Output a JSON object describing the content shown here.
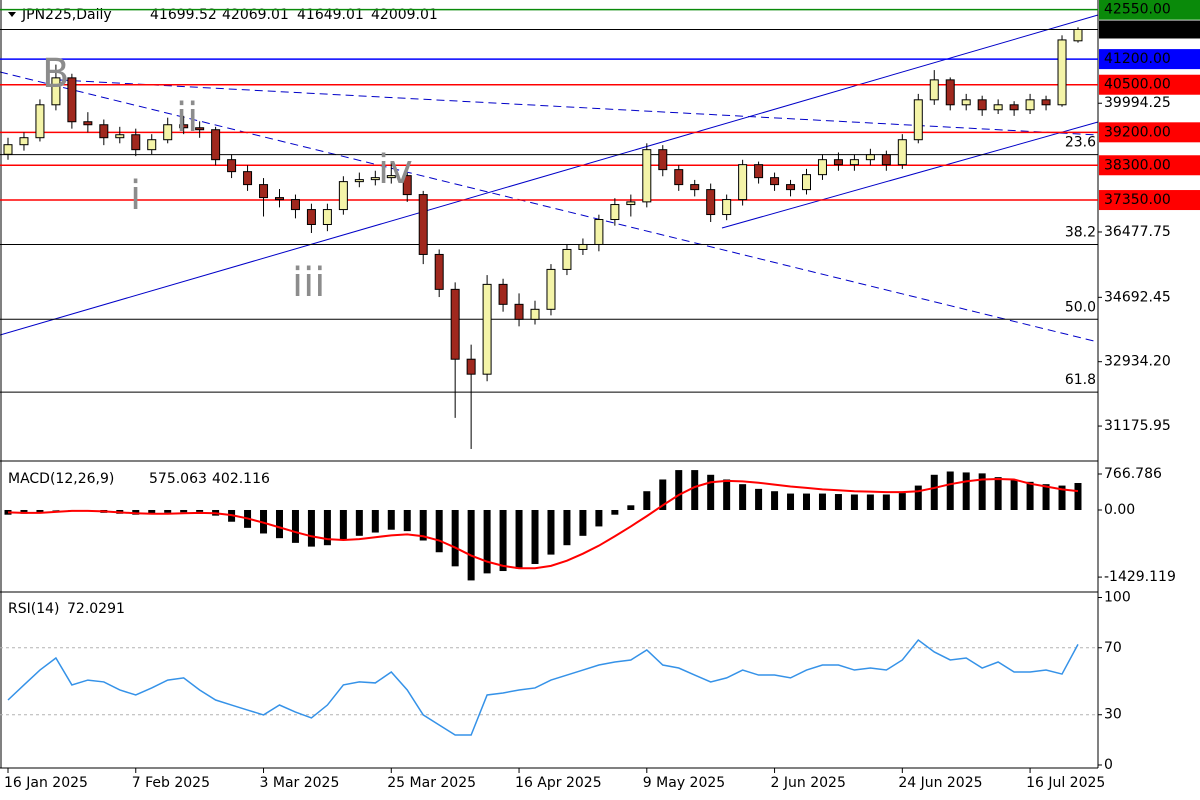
{
  "chart_data": [
    {
      "type": "candlestick",
      "title": "JPN225,Daily",
      "categories": [
        "16 Jan 2025",
        null,
        null,
        null,
        null,
        null,
        null,
        null,
        "7 Feb 2025",
        null,
        null,
        null,
        null,
        null,
        null,
        null,
        "3 Mar 2025",
        null,
        null,
        null,
        null,
        null,
        null,
        null,
        "25 Mar 2025",
        null,
        null,
        null,
        null,
        null,
        null,
        null,
        "16 Apr 2025",
        null,
        null,
        null,
        null,
        null,
        null,
        null,
        "9 May 2025",
        null,
        null,
        null,
        null,
        null,
        null,
        null,
        "2 Jun 2025",
        null,
        null,
        null,
        null,
        null,
        null,
        null,
        "24 Jun 2025",
        null,
        null,
        null,
        null,
        null,
        null,
        null,
        "16 Jul 2025",
        null,
        null,
        null
      ],
      "open": [
        38600,
        38862,
        39053,
        39952,
        40688,
        39489,
        39407,
        39053,
        39134,
        38726,
        38998,
        39407,
        39325,
        39271,
        38453,
        38126,
        37772,
        37417,
        37363,
        37090,
        36682,
        37090,
        37853,
        37908,
        37962,
        38017,
        37499,
        35864,
        34910,
        33002,
        32593,
        35046,
        34501,
        34092,
        34365,
        35455,
        36000,
        36136,
        36818,
        37227,
        37300,
        38726,
        38181,
        37772,
        37635,
        36954,
        37363,
        38317,
        37962,
        37772,
        37635,
        38044,
        38453,
        38317,
        38453,
        38589,
        38317,
        38998,
        40088,
        40633,
        39952,
        40088,
        39816,
        39952,
        39816,
        40088,
        39952,
        41699.52
      ],
      "high": [
        39050,
        39200,
        40100,
        41050,
        40800,
        39750,
        39550,
        39350,
        39300,
        39150,
        39600,
        39650,
        39500,
        39350,
        38600,
        38300,
        37950,
        37650,
        37500,
        37250,
        37250,
        38000,
        38100,
        38150,
        38400,
        38100,
        37600,
        36000,
        35100,
        33400,
        35300,
        35200,
        34800,
        34600,
        35600,
        36150,
        36300,
        36950,
        37400,
        37500,
        38900,
        38850,
        38300,
        37900,
        37800,
        37500,
        38450,
        38400,
        38100,
        37900,
        38200,
        38600,
        38650,
        38600,
        38750,
        38700,
        39150,
        40250,
        40900,
        40700,
        40250,
        40200,
        40100,
        40050,
        40250,
        40200,
        41850,
        42069.01
      ],
      "low": [
        38450,
        38700,
        38950,
        39800,
        39300,
        39200,
        38850,
        38900,
        38550,
        38600,
        38900,
        39150,
        39050,
        38300,
        37950,
        37600,
        36900,
        37150,
        36850,
        36450,
        36500,
        36950,
        37700,
        37750,
        37800,
        37300,
        35600,
        34700,
        31400,
        30550,
        32400,
        34300,
        33900,
        33950,
        34200,
        35300,
        35850,
        35950,
        36650,
        36900,
        37150,
        38000,
        37600,
        37450,
        36750,
        36800,
        37200,
        37800,
        37600,
        37450,
        37500,
        37900,
        38150,
        38150,
        38300,
        38150,
        38200,
        38900,
        39950,
        39800,
        39800,
        39650,
        39700,
        39650,
        39700,
        39800,
        39900,
        41649.01
      ],
      "close": [
        38862,
        39053,
        39952,
        40688,
        39489,
        39407,
        39053,
        39134,
        38726,
        38998,
        39407,
        39325,
        39271,
        38453,
        38126,
        37772,
        37417,
        37363,
        37090,
        36682,
        37090,
        37853,
        37908,
        37962,
        38017,
        37499,
        35864,
        34910,
        33002,
        32593,
        35046,
        34501,
        34092,
        34365,
        35455,
        36000,
        36136,
        36818,
        37227,
        37300,
        38726,
        38181,
        37772,
        37635,
        36954,
        37363,
        38317,
        37962,
        37772,
        37635,
        38044,
        38453,
        38317,
        38453,
        38589,
        38317,
        38998,
        40088,
        40633,
        39952,
        40088,
        39816,
        39952,
        39816,
        40088,
        39952,
        41724,
        42009.01
      ],
      "up_color": "#f4f4a8",
      "down_color": "#a0281e",
      "ylim": [
        30276,
        42678
      ],
      "yticks": [
        39994.25,
        36477.75,
        34692.45,
        {
          "value": 32934.2,
          "label": "32934.20"
        },
        31175.95
      ],
      "levels": [
        {
          "value": 42550,
          "label": "42550.00",
          "color": "#0a8a0a"
        },
        {
          "value": 41200,
          "label": "41200.00",
          "color": "#0000ff"
        },
        {
          "value": 40500,
          "label": "40500.00",
          "color": "#ff0000"
        },
        {
          "value": 39200,
          "label": "39200.00",
          "color": "#ff0000"
        },
        {
          "value": 38300,
          "label": "38300.00",
          "color": "#ff0000"
        },
        {
          "value": 37350,
          "label": "37350.00",
          "color": "#ff0000"
        }
      ],
      "fib_levels": [
        {
          "value": 38590,
          "label": "23.6"
        },
        {
          "value": 36136,
          "label": "38.2"
        },
        {
          "value": 34092,
          "label": "50.0"
        },
        {
          "value": 32102,
          "label": "61.8"
        }
      ],
      "annotations": [
        "B",
        "ii",
        "iv",
        "i",
        "iii"
      ]
    },
    {
      "type": "macd",
      "title": "MACD(12,26,9)",
      "series": [
        {
          "name": "histogram",
          "color": "#000000",
          "values": [
            -100,
            -80,
            -50,
            0,
            -20,
            -30,
            -60,
            -80,
            -100,
            -90,
            -60,
            -50,
            -40,
            -120,
            -250,
            -380,
            -500,
            -600,
            -700,
            -780,
            -750,
            -650,
            -550,
            -480,
            -420,
            -450,
            -650,
            -900,
            -1200,
            -1500,
            -1350,
            -1300,
            -1250,
            -1150,
            -950,
            -750,
            -550,
            -350,
            -100,
            100,
            400,
            650,
            850,
            850,
            750,
            650,
            550,
            450,
            400,
            350,
            350,
            350,
            340,
            330,
            330,
            330,
            360,
            520,
            750,
            820,
            800,
            780,
            700,
            650,
            600,
            550,
            520,
            575.063
          ]
        },
        {
          "name": "signal",
          "color": "#ff0000",
          "values": [
            -50,
            -60,
            -60,
            -40,
            -20,
            -20,
            -30,
            -50,
            -70,
            -80,
            -80,
            -70,
            -60,
            -70,
            -110,
            -180,
            -270,
            -370,
            -470,
            -560,
            -620,
            -640,
            -620,
            -580,
            -540,
            -520,
            -560,
            -650,
            -800,
            -970,
            -1100,
            -1190,
            -1240,
            -1240,
            -1190,
            -1080,
            -930,
            -760,
            -560,
            -350,
            -130,
            100,
            320,
            490,
            590,
            620,
            610,
            580,
            540,
            500,
            470,
            440,
            420,
            400,
            390,
            380,
            380,
            400,
            470,
            550,
            610,
            650,
            660,
            650,
            560,
            500,
            440,
            402.116
          ]
        }
      ],
      "ylim": [
        -1704,
        1001
      ],
      "yticks": [
        766.786,
        {
          "value": 0,
          "label": "0.00"
        },
        -1429.119
      ]
    },
    {
      "type": "line",
      "title": "RSI(14)",
      "color": "#3592e8",
      "values": [
        38.8,
        47.8,
        56.7,
        63.9,
        47.8,
        50.7,
        49.6,
        44.8,
        41.8,
        46,
        50.7,
        52,
        44.8,
        38.8,
        35.8,
        32.8,
        29.9,
        35.8,
        31.6,
        28.1,
        35.8,
        47.8,
        49.6,
        49,
        55.5,
        44.8,
        29.9,
        23.9,
        17.9,
        17.9,
        41.8,
        43,
        44.8,
        46,
        50.7,
        53.7,
        56.7,
        59.7,
        61.5,
        62.7,
        68.7,
        59.7,
        57.9,
        53.7,
        49.6,
        52,
        56.7,
        53.7,
        53.7,
        52,
        56.7,
        59.7,
        59.7,
        56.7,
        57.9,
        56.7,
        62.7,
        74.6,
        67.5,
        62.7,
        63.9,
        57.9,
        61.5,
        55.5,
        55.5,
        56.7,
        54.3,
        72.0291
      ],
      "ylim": [
        -1.8,
        101.5
      ],
      "yticks": [
        100,
        70,
        30,
        0
      ],
      "levels": [
        70,
        30
      ]
    }
  ]
}
